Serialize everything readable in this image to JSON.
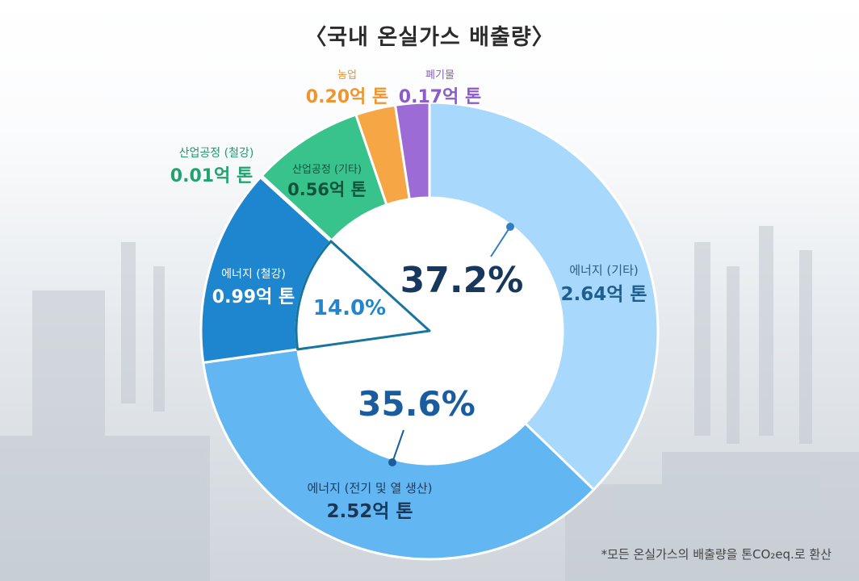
{
  "title": "〈국내 온실가스 배출량〉",
  "footnote": "*모든 온실가스의 배출량을 톤CO₂eq.로 환산",
  "chart_data": {
    "type": "donut",
    "title": "〈국내 온실가스 배출량〉",
    "unit": "억 톤",
    "segments": [
      {
        "id": "energy-other",
        "label": "에너지 (기타)",
        "value": 2.64,
        "value_text": "2.64억 톤",
        "color": "#a8d8fb",
        "percent_text": "37.2%"
      },
      {
        "id": "energy-power",
        "label": "에너지 (전기 및 열 생산)",
        "value": 2.52,
        "value_text": "2.52억 톤",
        "color": "#62b6f2",
        "percent_text": "35.6%"
      },
      {
        "id": "energy-steel",
        "label": "에너지 (철강)",
        "value": 0.99,
        "value_text": "0.99억 톤",
        "color": "#1e86cf",
        "percent_text": "14.0%"
      },
      {
        "id": "industry-steel",
        "label": "산업공정 (철강)",
        "value": 0.01,
        "value_text": "0.01억 톤",
        "color": "#6ee8bd"
      },
      {
        "id": "industry-other",
        "label": "산업공정 (기타)",
        "value": 0.56,
        "value_text": "0.56억 톤",
        "color": "#38c28c"
      },
      {
        "id": "agriculture",
        "label": "농업",
        "value": 0.2,
        "value_text": "0.20억 톤",
        "color": "#f7a645"
      },
      {
        "id": "waste",
        "label": "폐기물",
        "value": 0.17,
        "value_text": "0.17억 톤",
        "color": "#9d6bd6"
      }
    ]
  }
}
